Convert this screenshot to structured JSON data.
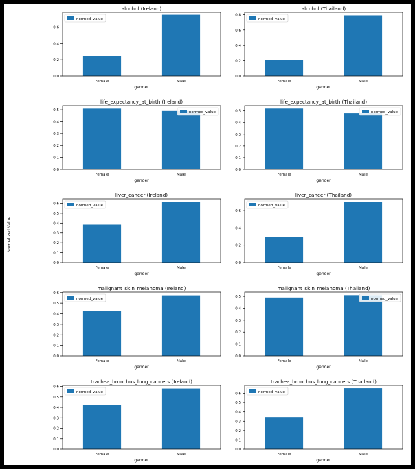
{
  "figure": {
    "ylabel": "Normalized Value"
  },
  "chart_data": [
    {
      "type": "bar",
      "title": "alcohol (Ireland)",
      "xlabel": "gender",
      "categories": [
        "Female",
        "Male"
      ],
      "series": [
        {
          "name": "normed_value",
          "values": [
            0.25,
            0.75
          ]
        }
      ],
      "ylim": [
        0,
        0.78
      ],
      "yticks": [
        "0.0",
        "0.2",
        "0.4",
        "0.6"
      ],
      "legend": "top-left",
      "color": "#1f77b4"
    },
    {
      "type": "bar",
      "title": "alcohol (Thailand)",
      "xlabel": "gender",
      "categories": [
        "Female",
        "Male"
      ],
      "series": [
        {
          "name": "normed_value",
          "values": [
            0.21,
            0.79
          ]
        }
      ],
      "ylim": [
        0,
        0.83
      ],
      "yticks": [
        "0.0",
        "0.2",
        "0.4",
        "0.6",
        "0.8"
      ],
      "legend": "top-left",
      "color": "#1f77b4"
    },
    {
      "type": "bar",
      "title": "life_expectancy_at_birth (Ireland)",
      "xlabel": "gender",
      "categories": [
        "Female",
        "Male"
      ],
      "series": [
        {
          "name": "normed_value",
          "values": [
            0.51,
            0.49
          ]
        }
      ],
      "ylim": [
        0,
        0.535
      ],
      "yticks": [
        "0.0",
        "0.1",
        "0.2",
        "0.3",
        "0.4",
        "0.5"
      ],
      "legend": "top-right",
      "color": "#1f77b4"
    },
    {
      "type": "bar",
      "title": "life_expectancy_at_birth (Thailand)",
      "xlabel": "gender",
      "categories": [
        "Female",
        "Male"
      ],
      "series": [
        {
          "name": "normed_value",
          "values": [
            0.52,
            0.48
          ]
        }
      ],
      "ylim": [
        0,
        0.545
      ],
      "yticks": [
        "0.0",
        "0.1",
        "0.2",
        "0.3",
        "0.4",
        "0.5"
      ],
      "legend": "top-right",
      "color": "#1f77b4"
    },
    {
      "type": "bar",
      "title": "liver_cancer (Ireland)",
      "xlabel": "gender",
      "categories": [
        "Female",
        "Male"
      ],
      "series": [
        {
          "name": "normed_value",
          "values": [
            0.385,
            0.615
          ]
        }
      ],
      "ylim": [
        0,
        0.645
      ],
      "yticks": [
        "0.0",
        "0.1",
        "0.2",
        "0.3",
        "0.4",
        "0.5",
        "0.6"
      ],
      "legend": "top-left",
      "color": "#1f77b4"
    },
    {
      "type": "bar",
      "title": "liver_cancer (Thailand)",
      "xlabel": "gender",
      "categories": [
        "Female",
        "Male"
      ],
      "series": [
        {
          "name": "normed_value",
          "values": [
            0.3,
            0.7
          ]
        }
      ],
      "ylim": [
        0,
        0.735
      ],
      "yticks": [
        "0.0",
        "0.2",
        "0.4",
        "0.6"
      ],
      "legend": "top-left",
      "color": "#1f77b4"
    },
    {
      "type": "bar",
      "title": "malignant_skin_melanoma (Ireland)",
      "xlabel": "gender",
      "categories": [
        "Female",
        "Male"
      ],
      "series": [
        {
          "name": "normed_value",
          "values": [
            0.425,
            0.575
          ]
        }
      ],
      "ylim": [
        0,
        0.605
      ],
      "yticks": [
        "0.0",
        "0.1",
        "0.2",
        "0.3",
        "0.4",
        "0.5",
        "0.6"
      ],
      "legend": "top-left",
      "color": "#1f77b4"
    },
    {
      "type": "bar",
      "title": "malignant_skin_melanoma (Thailand)",
      "xlabel": "gender",
      "categories": [
        "Female",
        "Male"
      ],
      "series": [
        {
          "name": "normed_value",
          "values": [
            0.49,
            0.51
          ]
        }
      ],
      "ylim": [
        0,
        0.535
      ],
      "yticks": [
        "0.0",
        "0.1",
        "0.2",
        "0.3",
        "0.4",
        "0.5"
      ],
      "legend": "top-right",
      "color": "#1f77b4"
    },
    {
      "type": "bar",
      "title": "trachea_bronchus_lung_cancers (Ireland)",
      "xlabel": "gender",
      "categories": [
        "Female",
        "Male"
      ],
      "series": [
        {
          "name": "normed_value",
          "values": [
            0.42,
            0.58
          ]
        }
      ],
      "ylim": [
        0,
        0.61
      ],
      "yticks": [
        "0.0",
        "0.1",
        "0.2",
        "0.3",
        "0.4",
        "0.5",
        "0.6"
      ],
      "legend": "top-left",
      "color": "#1f77b4"
    },
    {
      "type": "bar",
      "title": "trachea_bronchus_lung_cancers (Thailand)",
      "xlabel": "gender",
      "categories": [
        "Female",
        "Male"
      ],
      "series": [
        {
          "name": "normed_value",
          "values": [
            0.345,
            0.655
          ]
        }
      ],
      "ylim": [
        0,
        0.685
      ],
      "yticks": [
        "0.0",
        "0.1",
        "0.2",
        "0.3",
        "0.4",
        "0.5",
        "0.6"
      ],
      "legend": "top-left",
      "color": "#1f77b4"
    }
  ]
}
